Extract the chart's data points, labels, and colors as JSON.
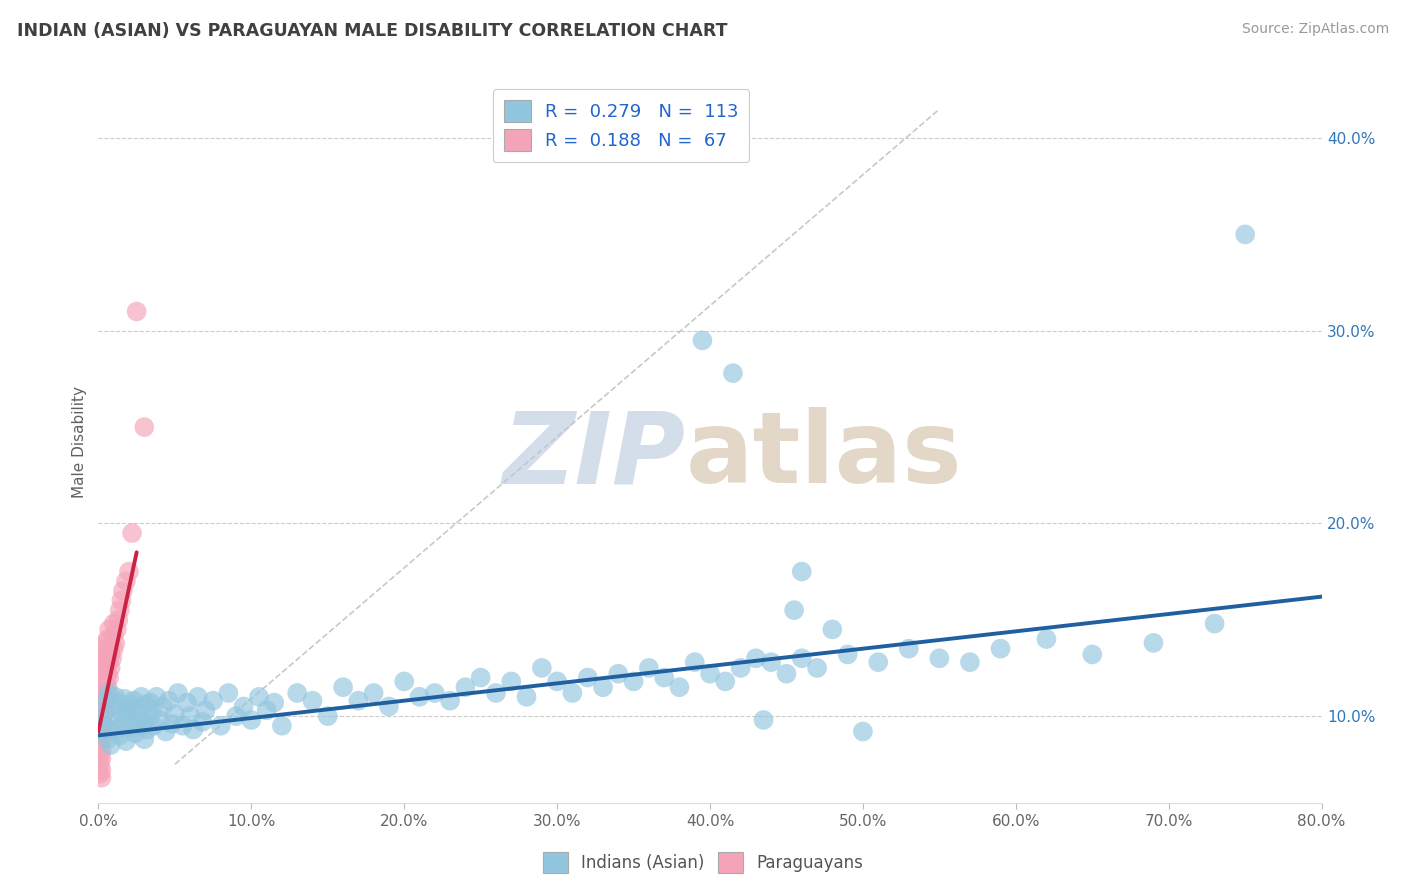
{
  "title": "INDIAN (ASIAN) VS PARAGUAYAN MALE DISABILITY CORRELATION CHART",
  "source": "Source: ZipAtlas.com",
  "ylabel": "Male Disability",
  "blue_R": 0.279,
  "blue_N": 113,
  "pink_R": 0.188,
  "pink_N": 67,
  "blue_color": "#92c5de",
  "pink_color": "#f4a4b8",
  "blue_line_color": "#2060a0",
  "pink_line_color": "#cc2244",
  "xlim": [
    0.0,
    0.8
  ],
  "ylim": [
    0.055,
    0.43
  ],
  "xticks": [
    0.0,
    0.1,
    0.2,
    0.3,
    0.4,
    0.5,
    0.6,
    0.7,
    0.8
  ],
  "xtick_labels": [
    "0.0%",
    "10.0%",
    "20.0%",
    "30.0%",
    "40.0%",
    "50.0%",
    "60.0%",
    "70.0%",
    "80.0%"
  ],
  "yticks": [
    0.1,
    0.2,
    0.3,
    0.4
  ],
  "ytick_labels": [
    "10.0%",
    "20.0%",
    "30.0%",
    "40.0%"
  ],
  "background_color": "#ffffff",
  "grid_color": "#cccccc",
  "title_color": "#404040",
  "axis_label_color": "#606060",
  "blue_scatter_x": [
    0.002,
    0.003,
    0.004,
    0.005,
    0.006,
    0.007,
    0.008,
    0.009,
    0.01,
    0.011,
    0.012,
    0.013,
    0.014,
    0.015,
    0.016,
    0.017,
    0.018,
    0.019,
    0.02,
    0.021,
    0.022,
    0.023,
    0.024,
    0.025,
    0.026,
    0.027,
    0.028,
    0.029,
    0.03,
    0.031,
    0.032,
    0.033,
    0.034,
    0.035,
    0.036,
    0.038,
    0.04,
    0.042,
    0.044,
    0.046,
    0.048,
    0.05,
    0.052,
    0.055,
    0.058,
    0.06,
    0.062,
    0.065,
    0.068,
    0.07,
    0.075,
    0.08,
    0.085,
    0.09,
    0.095,
    0.1,
    0.105,
    0.11,
    0.115,
    0.12,
    0.13,
    0.14,
    0.15,
    0.16,
    0.17,
    0.18,
    0.19,
    0.2,
    0.21,
    0.22,
    0.23,
    0.24,
    0.25,
    0.26,
    0.27,
    0.28,
    0.29,
    0.3,
    0.31,
    0.32,
    0.33,
    0.34,
    0.35,
    0.36,
    0.37,
    0.38,
    0.39,
    0.4,
    0.41,
    0.42,
    0.43,
    0.44,
    0.45,
    0.46,
    0.47,
    0.49,
    0.51,
    0.53,
    0.55,
    0.57,
    0.59,
    0.62,
    0.65,
    0.69,
    0.73,
    0.75,
    0.46,
    0.48,
    0.5,
    0.395,
    0.415,
    0.435,
    0.455
  ],
  "blue_scatter_y": [
    0.092,
    0.1,
    0.095,
    0.108,
    0.088,
    0.112,
    0.085,
    0.105,
    0.098,
    0.11,
    0.093,
    0.107,
    0.09,
    0.102,
    0.096,
    0.109,
    0.087,
    0.103,
    0.099,
    0.106,
    0.094,
    0.108,
    0.091,
    0.104,
    0.097,
    0.101,
    0.11,
    0.095,
    0.088,
    0.106,
    0.093,
    0.099,
    0.107,
    0.103,
    0.095,
    0.11,
    0.098,
    0.105,
    0.092,
    0.108,
    0.096,
    0.101,
    0.112,
    0.095,
    0.107,
    0.1,
    0.093,
    0.11,
    0.097,
    0.103,
    0.108,
    0.095,
    0.112,
    0.1,
    0.105,
    0.098,
    0.11,
    0.103,
    0.107,
    0.095,
    0.112,
    0.108,
    0.1,
    0.115,
    0.108,
    0.112,
    0.105,
    0.118,
    0.11,
    0.112,
    0.108,
    0.115,
    0.12,
    0.112,
    0.118,
    0.11,
    0.125,
    0.118,
    0.112,
    0.12,
    0.115,
    0.122,
    0.118,
    0.125,
    0.12,
    0.115,
    0.128,
    0.122,
    0.118,
    0.125,
    0.13,
    0.128,
    0.122,
    0.13,
    0.125,
    0.132,
    0.128,
    0.135,
    0.13,
    0.128,
    0.135,
    0.14,
    0.132,
    0.138,
    0.148,
    0.35,
    0.175,
    0.145,
    0.092,
    0.295,
    0.278,
    0.098,
    0.155
  ],
  "pink_scatter_x": [
    0.001,
    0.001,
    0.001,
    0.001,
    0.001,
    0.001,
    0.001,
    0.001,
    0.001,
    0.001,
    0.001,
    0.001,
    0.002,
    0.002,
    0.002,
    0.002,
    0.002,
    0.002,
    0.002,
    0.002,
    0.002,
    0.002,
    0.002,
    0.002,
    0.002,
    0.003,
    0.003,
    0.003,
    0.003,
    0.003,
    0.003,
    0.003,
    0.004,
    0.004,
    0.004,
    0.004,
    0.004,
    0.005,
    0.005,
    0.005,
    0.005,
    0.005,
    0.006,
    0.006,
    0.006,
    0.006,
    0.007,
    0.007,
    0.007,
    0.007,
    0.008,
    0.008,
    0.009,
    0.01,
    0.01,
    0.01,
    0.011,
    0.012,
    0.013,
    0.014,
    0.015,
    0.016,
    0.018,
    0.02,
    0.022,
    0.025,
    0.03
  ],
  "pink_scatter_y": [
    0.1,
    0.095,
    0.105,
    0.09,
    0.11,
    0.085,
    0.115,
    0.08,
    0.12,
    0.075,
    0.125,
    0.07,
    0.1,
    0.108,
    0.095,
    0.112,
    0.088,
    0.118,
    0.082,
    0.122,
    0.078,
    0.128,
    0.072,
    0.132,
    0.068,
    0.105,
    0.11,
    0.098,
    0.115,
    0.092,
    0.12,
    0.13,
    0.108,
    0.115,
    0.102,
    0.122,
    0.135,
    0.112,
    0.118,
    0.108,
    0.125,
    0.138,
    0.115,
    0.122,
    0.13,
    0.14,
    0.12,
    0.128,
    0.135,
    0.145,
    0.125,
    0.132,
    0.13,
    0.135,
    0.142,
    0.148,
    0.138,
    0.145,
    0.15,
    0.155,
    0.16,
    0.165,
    0.17,
    0.175,
    0.195,
    0.31,
    0.25
  ]
}
